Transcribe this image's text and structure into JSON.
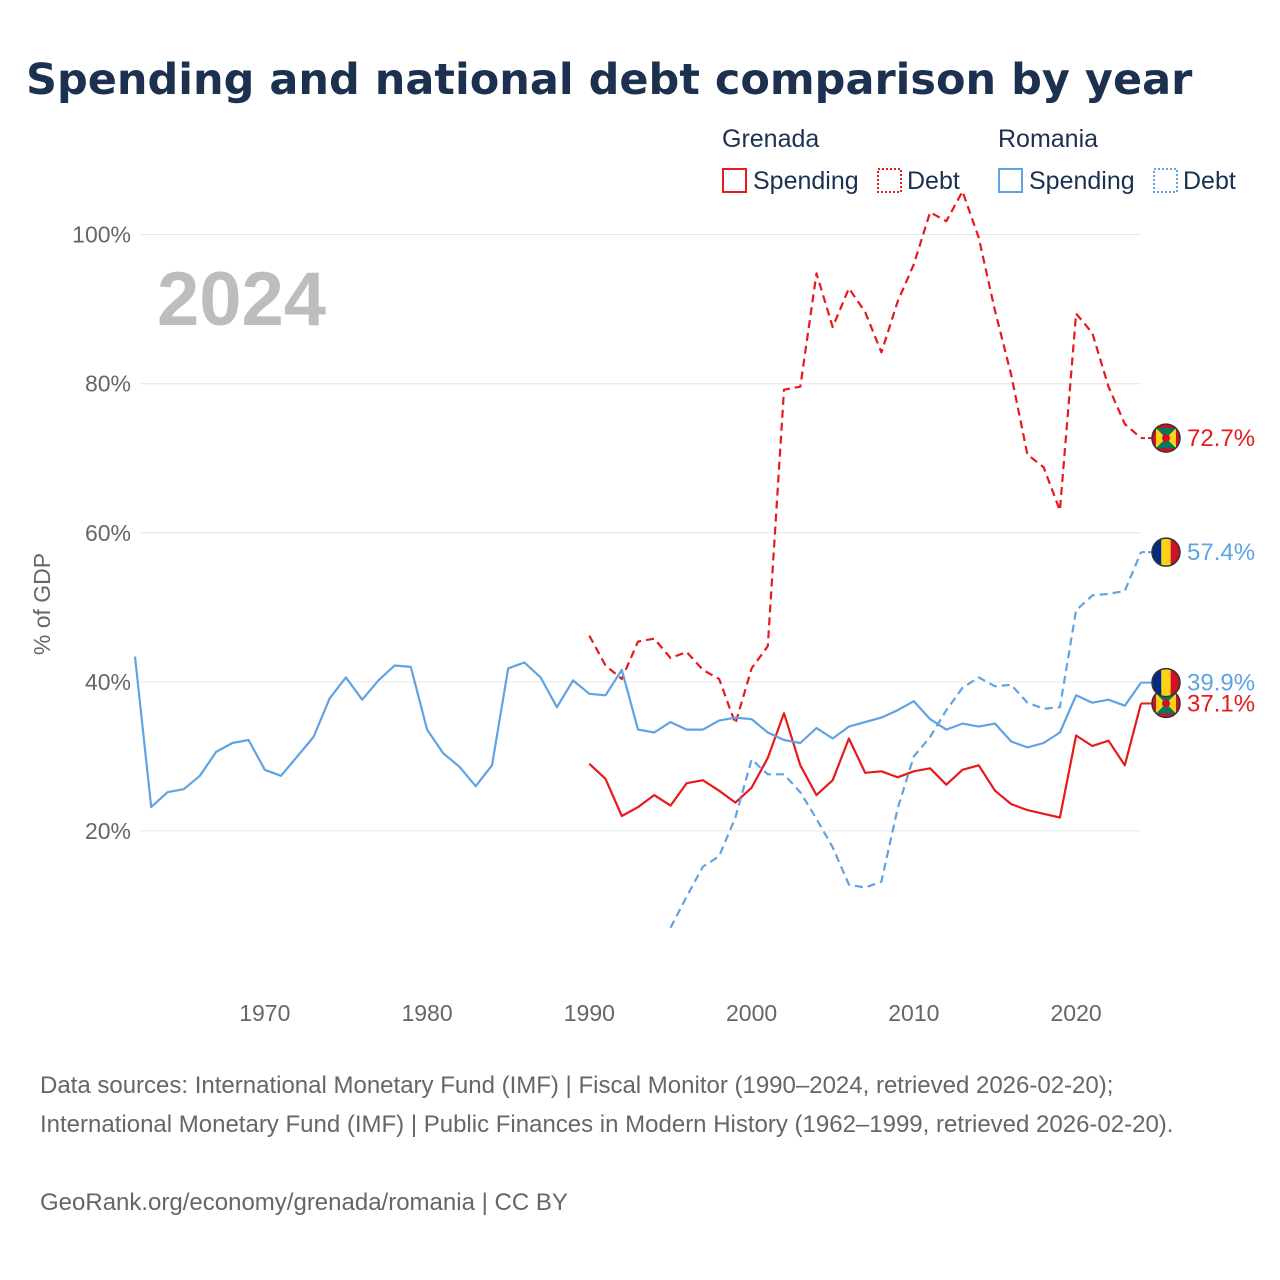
{
  "colors": {
    "grenada": "#e8191b",
    "romania": "#5fa3e4",
    "title": "#1c3050",
    "grid": "#e6e6e6",
    "axis_text": "#666666",
    "year_watermark": "#bdbdbd"
  },
  "chart_data": {
    "type": "line",
    "title": "Spending and national debt comparison by year",
    "ylabel": "% of GDP",
    "xlabel": "",
    "xlim": [
      1962,
      2024
    ],
    "ylim": [
      0,
      108
    ],
    "x_ticks": [
      1970,
      1980,
      1990,
      2000,
      2010,
      2020
    ],
    "y_ticks": [
      20,
      40,
      60,
      80,
      100
    ],
    "y_tick_labels": [
      "20%",
      "40%",
      "60%",
      "80%",
      "100%"
    ],
    "year_display": "2024",
    "legend": {
      "groups": [
        {
          "country": "Grenada",
          "spending_label": "Spending",
          "debt_label": "Debt"
        },
        {
          "country": "Romania",
          "spending_label": "Spending",
          "debt_label": "Debt"
        }
      ]
    },
    "series": [
      {
        "name": "Grenada Spending",
        "country": "grenada",
        "style": "solid",
        "end_label": "37.1%",
        "points": [
          [
            1990,
            29
          ],
          [
            1991,
            27
          ],
          [
            1992,
            22
          ],
          [
            1993,
            23.2
          ],
          [
            1994,
            24.8
          ],
          [
            1995,
            23.4
          ],
          [
            1996,
            26.4
          ],
          [
            1997,
            26.8
          ],
          [
            1998,
            25.4
          ],
          [
            1999,
            23.8
          ],
          [
            2000,
            25.8
          ],
          [
            2001,
            29.8
          ],
          [
            2002,
            35.8
          ],
          [
            2003,
            28.8
          ],
          [
            2004,
            24.8
          ],
          [
            2005,
            26.8
          ],
          [
            2006,
            32.4
          ],
          [
            2007,
            27.8
          ],
          [
            2008,
            28
          ],
          [
            2009,
            27.2
          ],
          [
            2010,
            28
          ],
          [
            2011,
            28.4
          ],
          [
            2012,
            26.2
          ],
          [
            2013,
            28.2
          ],
          [
            2014,
            28.8
          ],
          [
            2015,
            25.4
          ],
          [
            2016,
            23.6
          ],
          [
            2017,
            22.8
          ],
          [
            2018,
            22.3
          ],
          [
            2019,
            21.8
          ],
          [
            2020,
            32.8
          ],
          [
            2021,
            31.4
          ],
          [
            2022,
            32.1
          ],
          [
            2023,
            28.8
          ],
          [
            2024,
            37.1
          ]
        ]
      },
      {
        "name": "Grenada Debt",
        "country": "grenada",
        "style": "dashed",
        "end_label": "72.7%",
        "points": [
          [
            1990,
            46.2
          ],
          [
            1991,
            42.2
          ],
          [
            1992,
            40.4
          ],
          [
            1993,
            45.4
          ],
          [
            1994,
            45.8
          ],
          [
            1995,
            43.2
          ],
          [
            1996,
            44
          ],
          [
            1997,
            41.6
          ],
          [
            1998,
            40.4
          ],
          [
            1999,
            34.4
          ],
          [
            2000,
            41.8
          ],
          [
            2001,
            44.8
          ],
          [
            2002,
            79.2
          ],
          [
            2003,
            79.6
          ],
          [
            2004,
            94.8
          ],
          [
            2005,
            87.6
          ],
          [
            2006,
            92.8
          ],
          [
            2007,
            89.6
          ],
          [
            2008,
            84.2
          ],
          [
            2009,
            91
          ],
          [
            2010,
            96
          ],
          [
            2011,
            103
          ],
          [
            2012,
            101.8
          ],
          [
            2013,
            105.8
          ],
          [
            2014,
            99.6
          ],
          [
            2015,
            89.8
          ],
          [
            2016,
            81.2
          ],
          [
            2017,
            70.5
          ],
          [
            2018,
            68.8
          ],
          [
            2019,
            63
          ],
          [
            2020,
            89.4
          ],
          [
            2021,
            86.8
          ],
          [
            2022,
            79.6
          ],
          [
            2023,
            74.6
          ],
          [
            2024,
            72.7
          ]
        ]
      },
      {
        "name": "Romania Spending",
        "country": "romania",
        "style": "solid",
        "end_label": "39.9%",
        "points": [
          [
            1962,
            43.4
          ],
          [
            1963,
            23.2
          ],
          [
            1964,
            25.2
          ],
          [
            1965,
            25.6
          ],
          [
            1966,
            27.4
          ],
          [
            1967,
            30.6
          ],
          [
            1968,
            31.8
          ],
          [
            1969,
            32.2
          ],
          [
            1970,
            28.2
          ],
          [
            1971,
            27.4
          ],
          [
            1972,
            30
          ],
          [
            1973,
            32.6
          ],
          [
            1974,
            37.8
          ],
          [
            1975,
            40.6
          ],
          [
            1976,
            37.6
          ],
          [
            1977,
            40.2
          ],
          [
            1978,
            42.2
          ],
          [
            1979,
            42
          ],
          [
            1980,
            33.6
          ],
          [
            1981,
            30.4
          ],
          [
            1982,
            28.6
          ],
          [
            1983,
            26
          ],
          [
            1984,
            28.8
          ],
          [
            1985,
            41.8
          ],
          [
            1986,
            42.6
          ],
          [
            1987,
            40.6
          ],
          [
            1988,
            36.6
          ],
          [
            1989,
            40.2
          ],
          [
            1990,
            38.4
          ],
          [
            1991,
            38.2
          ],
          [
            1992,
            41.6
          ],
          [
            1993,
            33.6
          ],
          [
            1994,
            33.2
          ],
          [
            1995,
            34.6
          ],
          [
            1996,
            33.6
          ],
          [
            1997,
            33.6
          ],
          [
            1998,
            34.8
          ],
          [
            1999,
            35.2
          ],
          [
            2000,
            35
          ],
          [
            2001,
            33.2
          ],
          [
            2002,
            32.2
          ],
          [
            2003,
            31.8
          ],
          [
            2004,
            33.8
          ],
          [
            2005,
            32.4
          ],
          [
            2006,
            34
          ],
          [
            2007,
            34.6
          ],
          [
            2008,
            35.2
          ],
          [
            2009,
            36.2
          ],
          [
            2010,
            37.4
          ],
          [
            2011,
            35
          ],
          [
            2012,
            33.6
          ],
          [
            2013,
            34.4
          ],
          [
            2014,
            34
          ],
          [
            2015,
            34.4
          ],
          [
            2016,
            32
          ],
          [
            2017,
            31.2
          ],
          [
            2018,
            31.8
          ],
          [
            2019,
            33.2
          ],
          [
            2020,
            38.2
          ],
          [
            2021,
            37.2
          ],
          [
            2022,
            37.6
          ],
          [
            2023,
            36.8
          ],
          [
            2024,
            39.9
          ]
        ]
      },
      {
        "name": "Romania Debt",
        "country": "romania",
        "style": "dashed",
        "end_label": "57.4%",
        "points": [
          [
            1995,
            7
          ],
          [
            1996,
            11.2
          ],
          [
            1997,
            15.2
          ],
          [
            1998,
            16.6
          ],
          [
            1999,
            21.8
          ],
          [
            2000,
            29.6
          ],
          [
            2001,
            27.6
          ],
          [
            2002,
            27.6
          ],
          [
            2003,
            25.2
          ],
          [
            2004,
            21.6
          ],
          [
            2005,
            17.8
          ],
          [
            2006,
            12.8
          ],
          [
            2007,
            12.4
          ],
          [
            2008,
            13.2
          ],
          [
            2009,
            23
          ],
          [
            2010,
            30
          ],
          [
            2011,
            32.6
          ],
          [
            2012,
            36.2
          ],
          [
            2013,
            39.2
          ],
          [
            2014,
            40.6
          ],
          [
            2015,
            39.4
          ],
          [
            2016,
            39.6
          ],
          [
            2017,
            37.2
          ],
          [
            2018,
            36.4
          ],
          [
            2019,
            36.6
          ],
          [
            2020,
            49.6
          ],
          [
            2021,
            51.6
          ],
          [
            2022,
            51.8
          ],
          [
            2023,
            52.2
          ],
          [
            2024,
            57.4
          ]
        ]
      }
    ]
  },
  "footer": {
    "sources": "Data sources: International Monetary Fund (IMF) | Fiscal Monitor (1990–2024, retrieved 2026-02-20); International Monetary Fund (IMF) | Public Finances in Modern History (1962–1999, retrieved 2026-02-20).",
    "credit": "GeoRank.org/economy/grenada/romania | CC BY"
  }
}
